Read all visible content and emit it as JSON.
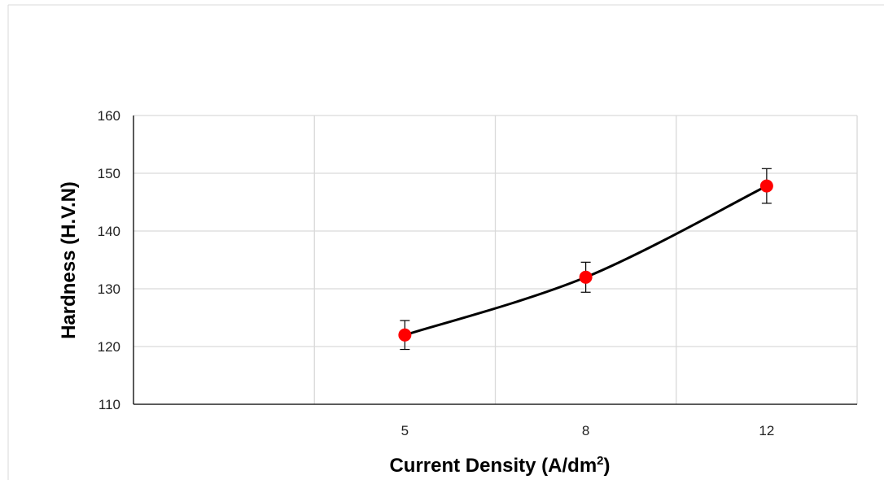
{
  "chart_data": {
    "type": "line",
    "title": "",
    "xlabel": "Current Density (A/dm",
    "xlabel_sup": "2",
    "xlabel_end": ")",
    "ylabel": "Hardness (H.V.N)",
    "ylim": [
      110,
      160
    ],
    "y_ticks": [
      "110",
      "120",
      "130",
      "140",
      "150",
      "160"
    ],
    "categories": [
      "5",
      "8",
      "12"
    ],
    "series": [
      {
        "values": [
          122,
          132,
          147.8
        ],
        "error": [
          2.5,
          2.6,
          3.0
        ]
      }
    ],
    "grid": true,
    "legend": "none",
    "colors": {
      "line": "#000000",
      "marker": "#ff0000",
      "grid": "#d9d9d9",
      "frame": "#d9d9d9"
    }
  }
}
